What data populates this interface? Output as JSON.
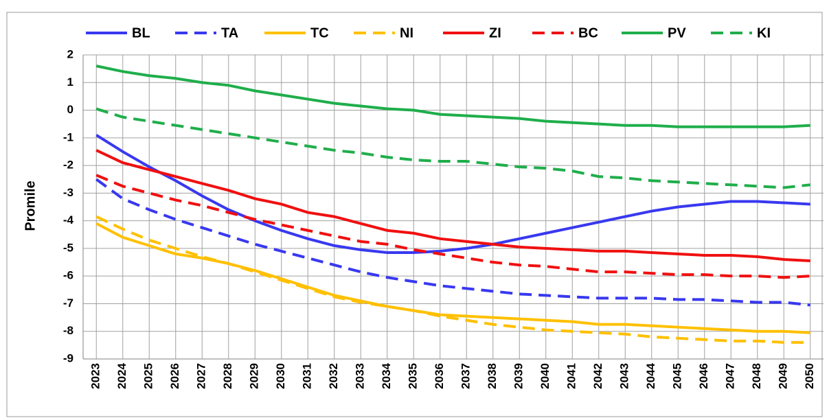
{
  "chart_data": {
    "type": "line",
    "y_label": "Promile",
    "categories": [
      "2023",
      "2024",
      "2025",
      "2026",
      "2027",
      "2028",
      "2029",
      "2030",
      "2031",
      "2032",
      "2033",
      "2034",
      "2035",
      "2036",
      "2037",
      "2038",
      "2039",
      "2040",
      "2041",
      "2042",
      "2043",
      "2044",
      "2045",
      "2046",
      "2047",
      "2048",
      "2049",
      "2050"
    ],
    "ylim": [
      -9,
      2
    ],
    "yticks": [
      -9,
      -8,
      -7,
      -6,
      -5,
      -4,
      -3,
      -2,
      -1,
      0,
      1,
      2
    ],
    "grid": true,
    "legend": "top",
    "series": [
      {
        "name": "BL",
        "color": "#3838f0",
        "line_style": "solid",
        "values": [
          -0.9,
          -1.5,
          -2.05,
          -2.55,
          -3.1,
          -3.6,
          -4.0,
          -4.35,
          -4.65,
          -4.9,
          -5.05,
          -5.15,
          -5.15,
          -5.1,
          -5.0,
          -4.85,
          -4.65,
          -4.45,
          -4.25,
          -4.05,
          -3.85,
          -3.65,
          -3.5,
          -3.4,
          -3.3,
          -3.3,
          -3.35,
          -3.4
        ]
      },
      {
        "name": "TA",
        "color": "#3838f0",
        "line_style": "dashed",
        "values": [
          -2.5,
          -3.2,
          -3.6,
          -3.95,
          -4.25,
          -4.55,
          -4.85,
          -5.1,
          -5.35,
          -5.6,
          -5.85,
          -6.05,
          -6.2,
          -6.35,
          -6.45,
          -6.55,
          -6.65,
          -6.7,
          -6.75,
          -6.8,
          -6.8,
          -6.8,
          -6.85,
          -6.85,
          -6.9,
          -6.95,
          -6.95,
          -7.05
        ]
      },
      {
        "name": "TC",
        "color": "#ffc000",
        "line_style": "solid",
        "values": [
          -4.1,
          -4.6,
          -4.9,
          -5.2,
          -5.35,
          -5.55,
          -5.8,
          -6.1,
          -6.4,
          -6.7,
          -6.9,
          -7.1,
          -7.25,
          -7.4,
          -7.45,
          -7.5,
          -7.55,
          -7.6,
          -7.65,
          -7.75,
          -7.75,
          -7.8,
          -7.85,
          -7.9,
          -7.95,
          -8.0,
          -8.0,
          -8.05
        ]
      },
      {
        "name": "NI",
        "color": "#ffc000",
        "line_style": "dashed",
        "values": [
          -3.85,
          -4.3,
          -4.7,
          -5.0,
          -5.3,
          -5.55,
          -5.85,
          -6.15,
          -6.45,
          -6.75,
          -6.95,
          -7.1,
          -7.25,
          -7.45,
          -7.6,
          -7.75,
          -7.85,
          -7.95,
          -8.0,
          -8.05,
          -8.1,
          -8.2,
          -8.25,
          -8.3,
          -8.35,
          -8.35,
          -8.4,
          -8.4
        ]
      },
      {
        "name": "ZI",
        "color": "#f01010",
        "line_style": "solid",
        "values": [
          -1.45,
          -1.9,
          -2.15,
          -2.4,
          -2.65,
          -2.9,
          -3.2,
          -3.4,
          -3.7,
          -3.85,
          -4.1,
          -4.35,
          -4.45,
          -4.65,
          -4.75,
          -4.85,
          -4.95,
          -5.0,
          -5.05,
          -5.1,
          -5.1,
          -5.15,
          -5.2,
          -5.25,
          -5.25,
          -5.3,
          -5.4,
          -5.45
        ]
      },
      {
        "name": "BC",
        "color": "#f01010",
        "line_style": "dashed",
        "values": [
          -2.35,
          -2.75,
          -3.0,
          -3.25,
          -3.45,
          -3.7,
          -3.95,
          -4.15,
          -4.35,
          -4.55,
          -4.75,
          -4.85,
          -5.05,
          -5.2,
          -5.35,
          -5.5,
          -5.6,
          -5.65,
          -5.75,
          -5.85,
          -5.85,
          -5.9,
          -5.95,
          -5.95,
          -6.0,
          -6.0,
          -6.05,
          -6.0
        ]
      },
      {
        "name": "PV",
        "color": "#1fae4b",
        "line_style": "solid",
        "values": [
          1.6,
          1.4,
          1.25,
          1.15,
          1.0,
          0.9,
          0.7,
          0.55,
          0.4,
          0.25,
          0.15,
          0.05,
          0.0,
          -0.15,
          -0.2,
          -0.25,
          -0.3,
          -0.4,
          -0.45,
          -0.5,
          -0.55,
          -0.55,
          -0.6,
          -0.6,
          -0.6,
          -0.6,
          -0.6,
          -0.55
        ]
      },
      {
        "name": "KI",
        "color": "#1fae4b",
        "line_style": "dashed",
        "values": [
          0.05,
          -0.25,
          -0.4,
          -0.55,
          -0.7,
          -0.85,
          -1.0,
          -1.15,
          -1.3,
          -1.45,
          -1.55,
          -1.7,
          -1.8,
          -1.85,
          -1.85,
          -1.95,
          -2.05,
          -2.1,
          -2.2,
          -2.4,
          -2.45,
          -2.55,
          -2.6,
          -2.65,
          -2.7,
          -2.75,
          -2.8,
          -2.7
        ]
      }
    ]
  }
}
